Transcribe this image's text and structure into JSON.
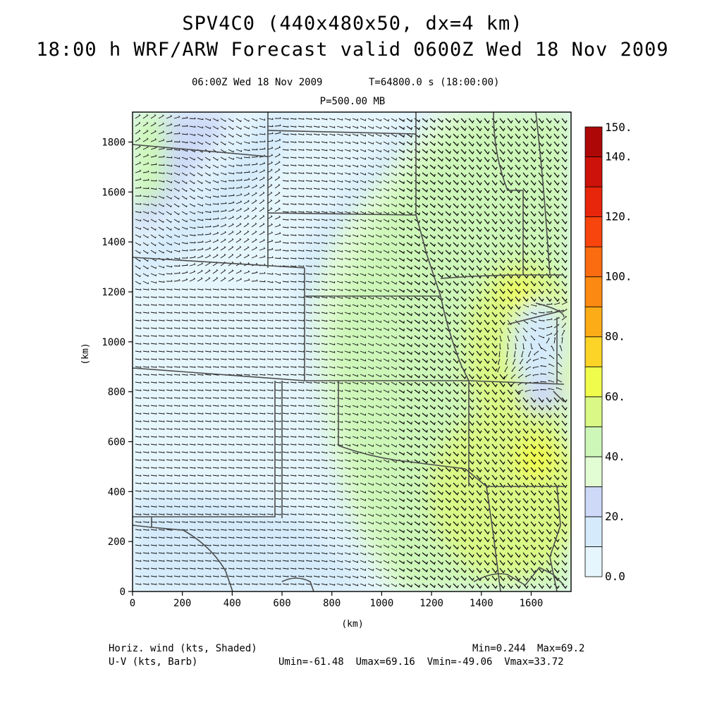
{
  "titles": {
    "line1": "SPV4C0 (440x480x50, dx=4 km)",
    "line2": "18:00 h WRF/ARW Forecast valid 0600Z Wed 18 Nov 2009",
    "valid_time": "06:00Z Wed 18 Nov 2009",
    "model_time": "T=64800.0 s (18:00:00)",
    "level": "P=500.00 MB"
  },
  "axes": {
    "x_label": "(km)",
    "y_label": "(km)",
    "x_ticks": [
      "0",
      "200",
      "400",
      "600",
      "800",
      "1000",
      "1200",
      "1400",
      "1600"
    ],
    "y_ticks": [
      "0",
      "200",
      "400",
      "600",
      "800",
      "1000",
      "1200",
      "1400",
      "1600",
      "1800"
    ],
    "x_range": [
      0,
      1760
    ],
    "y_range": [
      0,
      1920
    ]
  },
  "colorbar": {
    "labels": [
      "0.0",
      "20.",
      "40.",
      "60.",
      "80.",
      "100.",
      "120.",
      "140.",
      "150."
    ],
    "levels": [
      0,
      10,
      20,
      30,
      40,
      50,
      60,
      70,
      80,
      90,
      100,
      110,
      120,
      130,
      140,
      150
    ],
    "colors": [
      "#e6f6fd",
      "#d5ebfb",
      "#cdd9f7",
      "#e2fcd4",
      "#cdf7b8",
      "#daf885",
      "#f0fc4c",
      "#fcd427",
      "#fcac17",
      "#fc8a12",
      "#fb6b10",
      "#f8440d",
      "#e7260b",
      "#cc120a",
      "#ad0807"
    ]
  },
  "field": {
    "name": "Horiz. wind (kts, Shaded)",
    "barb_name": "U-V (kts, Barb)",
    "min": "Min=0.244",
    "max": "Max=69.2",
    "uv_stats": "Umin=-61.48  Umax=69.16  Vmin=-49.06  Vmax=33.72"
  },
  "legend_colors": {
    "boundaries": "#4d4d4d",
    "barbs": "#111111"
  }
}
